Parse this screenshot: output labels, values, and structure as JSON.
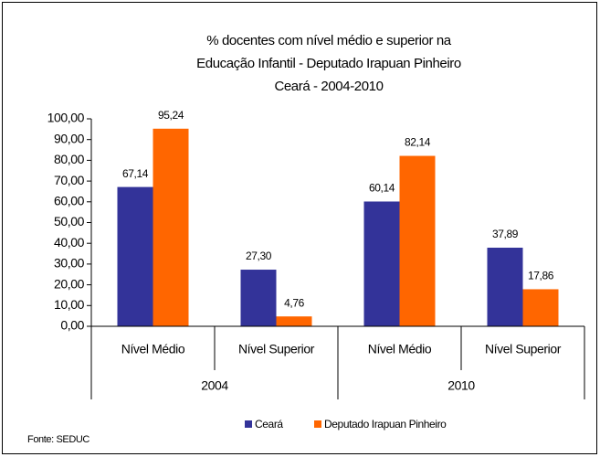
{
  "chart_data": {
    "type": "bar",
    "title": [
      "% docentes com nível médio e superior na",
      "Educação Infantil - Deputado Irapuan Pinheiro",
      "Ceará - 2004-2010"
    ],
    "categories": [
      "Nível Médio",
      "Nível Superior",
      "Nível Médio",
      "Nível Superior"
    ],
    "groups": [
      "2004",
      "2010"
    ],
    "series": [
      {
        "name": "Ceará",
        "color": "#333399",
        "values": [
          67.14,
          27.3,
          60.14,
          37.89
        ],
        "value_labels": [
          "67,14",
          "27,30",
          "60,14",
          "37,89"
        ]
      },
      {
        "name": "Deputado Irapuan Pinheiro",
        "color": "#ff6600",
        "values": [
          95.24,
          4.76,
          82.14,
          17.86
        ],
        "value_labels": [
          "95,24",
          "4,76",
          "82,14",
          "17,86"
        ]
      }
    ],
    "ylim": [
      0,
      100
    ],
    "yticks": [
      {
        "value": 0,
        "label": "0,00"
      },
      {
        "value": 10,
        "label": "10,00"
      },
      {
        "value": 20,
        "label": "20,00"
      },
      {
        "value": 30,
        "label": "30,00"
      },
      {
        "value": 40,
        "label": "40,00"
      },
      {
        "value": 50,
        "label": "50,00"
      },
      {
        "value": 60,
        "label": "60,00"
      },
      {
        "value": 70,
        "label": "70,00"
      },
      {
        "value": 80,
        "label": "80,00"
      },
      {
        "value": 90,
        "label": "90,00"
      },
      {
        "value": 100,
        "label": "100,00"
      }
    ],
    "grid": false,
    "legend": "bottom",
    "source": "Fonte: SEDUC"
  }
}
